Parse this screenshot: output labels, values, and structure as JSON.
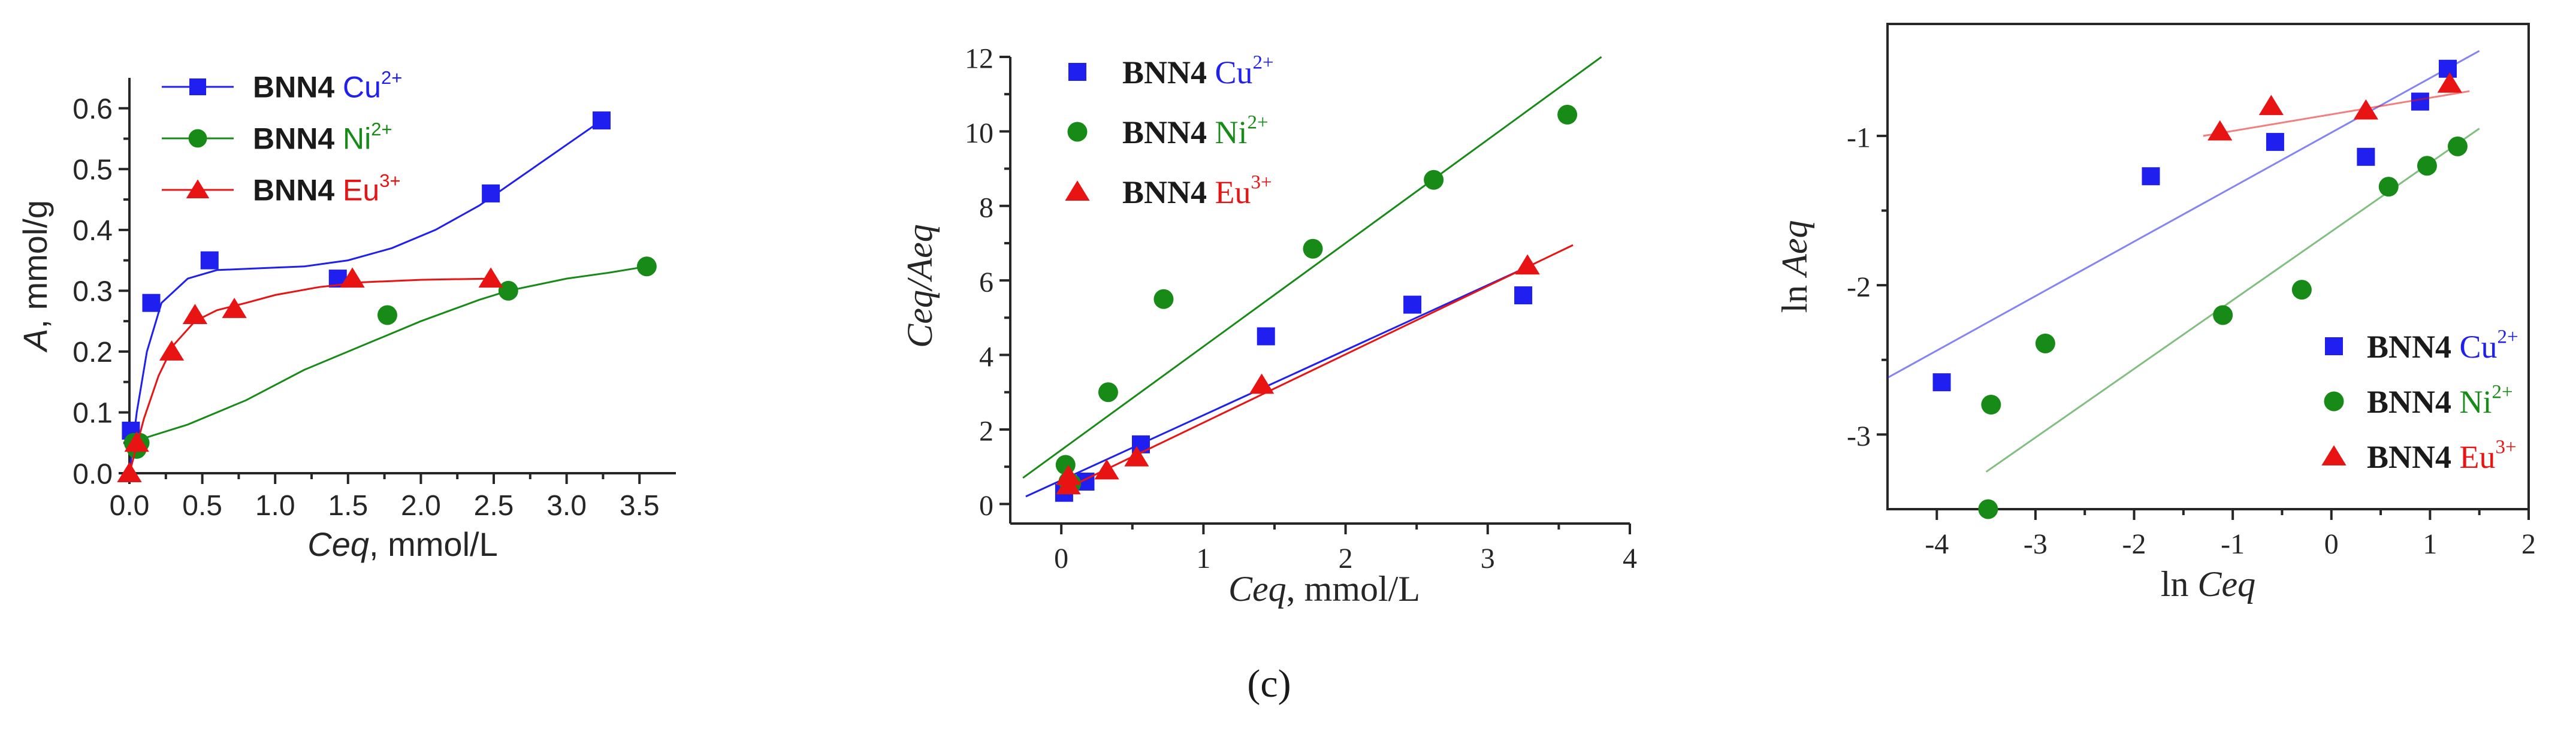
{
  "caption": "(c)",
  "chart_data": [
    {
      "type": "scatter",
      "panel": "left",
      "title": "",
      "xlabel": {
        "var": "Ceq",
        "rest": ", mmol/L"
      },
      "ylabel": {
        "var": "A",
        "rest": ", mmol/g"
      },
      "xlim": [
        0,
        3.75
      ],
      "ylim": [
        0,
        0.65
      ],
      "xticks": [
        "0.0",
        "0.5",
        "1.0",
        "1.5",
        "2.0",
        "2.5",
        "3.0",
        "3.5"
      ],
      "yticks": [
        "0.0",
        "0.1",
        "0.2",
        "0.3",
        "0.4",
        "0.5",
        "0.6"
      ],
      "legend_position": "top-left",
      "series": [
        {
          "name": "Cu2+",
          "label_bold": "BNN4",
          "ion": "Cu",
          "charge": "2+",
          "color": "#1f1fef",
          "marker": "square",
          "points": [
            [
              0.01,
              0.07
            ],
            [
              0.15,
              0.28
            ],
            [
              0.55,
              0.35
            ],
            [
              1.43,
              0.32
            ],
            [
              2.48,
              0.46
            ],
            [
              3.24,
              0.58
            ]
          ],
          "fit": [
            [
              0,
              0.0
            ],
            [
              0.05,
              0.1
            ],
            [
              0.12,
              0.2
            ],
            [
              0.22,
              0.28
            ],
            [
              0.4,
              0.32
            ],
            [
              0.6,
              0.334
            ],
            [
              0.9,
              0.337
            ],
            [
              1.2,
              0.34
            ],
            [
              1.5,
              0.35
            ],
            [
              1.8,
              0.37
            ],
            [
              2.1,
              0.4
            ],
            [
              2.4,
              0.44
            ],
            [
              2.7,
              0.49
            ],
            [
              3.0,
              0.54
            ],
            [
              3.24,
              0.58
            ]
          ]
        },
        {
          "name": "Ni2+",
          "label_bold": "BNN4",
          "ion": "Ni",
          "charge": "2+",
          "color": "#178a17",
          "marker": "circle",
          "points": [
            [
              0.03,
              0.05
            ],
            [
              0.05,
              0.04
            ],
            [
              0.07,
              0.05
            ],
            [
              1.77,
              0.26
            ],
            [
              2.6,
              0.3
            ],
            [
              3.55,
              0.34
            ]
          ],
          "fit": [
            [
              0.0,
              0.05
            ],
            [
              0.4,
              0.08
            ],
            [
              0.8,
              0.12
            ],
            [
              1.2,
              0.17
            ],
            [
              1.6,
              0.21
            ],
            [
              2.0,
              0.25
            ],
            [
              2.4,
              0.285
            ],
            [
              2.6,
              0.3
            ],
            [
              3.0,
              0.32
            ],
            [
              3.3,
              0.33
            ],
            [
              3.55,
              0.34
            ]
          ]
        },
        {
          "name": "Eu3+",
          "label_bold": "BNN4",
          "ion": "Eu",
          "charge": "3+",
          "color": "#e81414",
          "marker": "triangle",
          "points": [
            [
              0.0,
              0.0
            ],
            [
              0.05,
              0.05
            ],
            [
              0.29,
              0.2
            ],
            [
              0.45,
              0.26
            ],
            [
              0.72,
              0.27
            ],
            [
              1.53,
              0.32
            ],
            [
              2.48,
              0.32
            ]
          ],
          "fit": [
            [
              0,
              0.0
            ],
            [
              0.1,
              0.09
            ],
            [
              0.2,
              0.16
            ],
            [
              0.3,
              0.21
            ],
            [
              0.45,
              0.25
            ],
            [
              0.6,
              0.268
            ],
            [
              0.8,
              0.28
            ],
            [
              1.0,
              0.293
            ],
            [
              1.3,
              0.306
            ],
            [
              1.6,
              0.314
            ],
            [
              2.0,
              0.318
            ],
            [
              2.48,
              0.32
            ]
          ]
        }
      ]
    },
    {
      "type": "scatter",
      "panel": "middle",
      "title": "",
      "xlabel": {
        "var": "Ceq",
        "rest": ", mmol/L"
      },
      "ylabel": {
        "var": "Ceq/Aeq",
        "rest": ""
      },
      "xlim": [
        -0.3,
        4
      ],
      "ylim": [
        -0.3,
        12
      ],
      "xticks": [
        "0",
        "1",
        "2",
        "3",
        "4"
      ],
      "yticks": [
        "0",
        "2",
        "4",
        "6",
        "8",
        "10",
        "12"
      ],
      "legend_position": "top-left",
      "series": [
        {
          "name": "Cu2+",
          "label_bold": "BNN4",
          "ion": "Cu",
          "charge": "2+",
          "color": "#1f1fef",
          "marker": "square",
          "points": [
            [
              0.02,
              0.3
            ],
            [
              0.17,
              0.6
            ],
            [
              0.56,
              1.6
            ],
            [
              1.44,
              4.5
            ],
            [
              2.47,
              5.35
            ],
            [
              3.25,
              5.6
            ]
          ],
          "fit": [
            [
              -0.25,
              0.2
            ],
            [
              3.3,
              6.4
            ]
          ]
        },
        {
          "name": "Ni2+",
          "label_bold": "BNN4",
          "ion": "Ni",
          "charge": "2+",
          "color": "#178a17",
          "marker": "circle",
          "points": [
            [
              0.03,
              1.05
            ],
            [
              0.05,
              0.6
            ],
            [
              0.07,
              0.55
            ],
            [
              0.33,
              3.0
            ],
            [
              0.72,
              5.5
            ],
            [
              1.77,
              6.85
            ],
            [
              2.62,
              8.7
            ],
            [
              3.56,
              10.45
            ]
          ],
          "fit": [
            [
              -0.27,
              0.7
            ],
            [
              3.8,
              12.0
            ]
          ]
        },
        {
          "name": "Eu3+",
          "label_bold": "BNN4",
          "ion": "Eu",
          "charge": "3+",
          "color": "#e81414",
          "marker": "triangle",
          "points": [
            [
              0.05,
              0.5
            ],
            [
              0.05,
              0.75
            ],
            [
              0.32,
              0.9
            ],
            [
              0.53,
              1.25
            ],
            [
              1.41,
              3.2
            ],
            [
              3.28,
              6.4
            ]
          ],
          "fit": [
            [
              0.0,
              0.35
            ],
            [
              3.6,
              6.95
            ]
          ]
        }
      ]
    },
    {
      "type": "scatter",
      "panel": "right",
      "title": "",
      "xlabel": {
        "var": "Ceq",
        "prefix": "ln "
      },
      "ylabel": {
        "var": "Aeq",
        "prefix": "ln "
      },
      "xlim": [
        -4.5,
        2
      ],
      "ylim": [
        -3.5,
        -0.25
      ],
      "xticks": [
        "-4",
        "-3",
        "-2",
        "-1",
        "0",
        "1",
        "2"
      ],
      "yticks": [
        "-3",
        "-2",
        "-1"
      ],
      "legend_position": "bottom-right",
      "series": [
        {
          "name": "Cu2+",
          "label_bold": "BNN4",
          "ion": "Cu",
          "charge": "2+",
          "color": "#1f1fef",
          "marker": "square",
          "points": [
            [
              -3.95,
              -2.65
            ],
            [
              -1.83,
              -1.27
            ],
            [
              -0.57,
              -1.04
            ],
            [
              0.35,
              -1.14
            ],
            [
              0.9,
              -0.77
            ],
            [
              1.18,
              -0.55
            ]
          ],
          "fit": [
            [
              -4.5,
              -2.62
            ],
            [
              1.5,
              -0.43
            ]
          ]
        },
        {
          "name": "Ni2+",
          "label_bold": "BNN4",
          "ion": "Ni",
          "charge": "2+",
          "color": "#178a17",
          "marker": "circle",
          "points": [
            [
              -3.48,
              -3.5
            ],
            [
              -3.45,
              -2.8
            ],
            [
              -2.9,
              -2.39
            ],
            [
              -1.1,
              -2.2
            ],
            [
              -0.3,
              -2.03
            ],
            [
              0.58,
              -1.34
            ],
            [
              0.97,
              -1.2
            ],
            [
              1.28,
              -1.07
            ]
          ],
          "fit": [
            [
              -3.5,
              -3.25
            ],
            [
              1.5,
              -0.95
            ]
          ]
        },
        {
          "name": "Eu3+",
          "label_bold": "BNN4",
          "ion": "Eu",
          "charge": "3+",
          "color": "#e81414",
          "marker": "triangle",
          "points": [
            [
              -1.13,
              -0.97
            ],
            [
              -0.61,
              -0.8
            ],
            [
              0.35,
              -0.83
            ],
            [
              1.2,
              -0.65
            ]
          ],
          "fit": [
            [
              -1.3,
              -1.0
            ],
            [
              1.4,
              -0.7
            ]
          ]
        }
      ]
    }
  ]
}
